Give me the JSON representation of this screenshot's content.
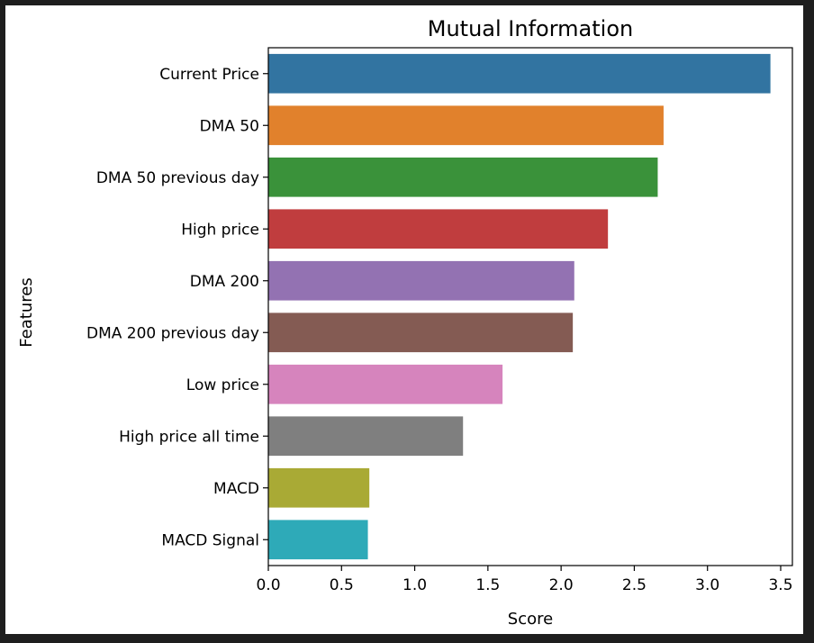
{
  "chart_data": {
    "type": "bar",
    "orientation": "horizontal",
    "title": "Mutual Information",
    "xlabel": "Score",
    "ylabel": "Features",
    "xlim": [
      0,
      3.58
    ],
    "xticks": [
      "0.0",
      "0.5",
      "1.0",
      "1.5",
      "2.0",
      "2.5",
      "3.0",
      "3.5"
    ],
    "grid": false,
    "categories": [
      "Current Price",
      "DMA 50",
      "DMA 50 previous day",
      "High price",
      "DMA 200",
      "DMA 200 previous day",
      "Low price",
      "High price all time",
      "MACD",
      "MACD Signal"
    ],
    "values": [
      3.43,
      2.7,
      2.66,
      2.32,
      2.09,
      2.08,
      1.6,
      1.33,
      0.69,
      0.68
    ],
    "colors": [
      "#3274a1",
      "#e1812c",
      "#3a923a",
      "#c03d3e",
      "#9372b2",
      "#845b53",
      "#d684bd",
      "#7f7f7f",
      "#a9aa35",
      "#2eaab8"
    ]
  }
}
